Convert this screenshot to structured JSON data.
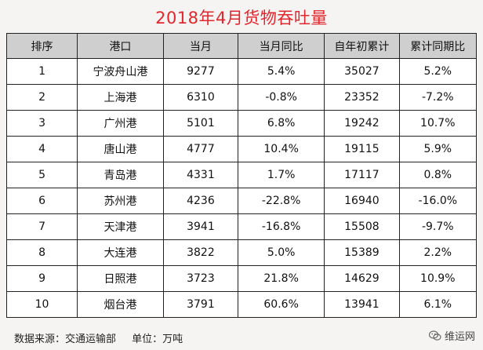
{
  "title": "2018年4月货物吞吐量",
  "table": {
    "headers": [
      "排序",
      "港口",
      "当月",
      "当月同比",
      "自年初累计",
      "累计同期比"
    ],
    "rows": [
      [
        "1",
        "宁波舟山港",
        "9277",
        "5.4%",
        "35027",
        "5.2%"
      ],
      [
        "2",
        "上海港",
        "6310",
        "-0.8%",
        "23352",
        "-7.2%"
      ],
      [
        "3",
        "广州港",
        "5101",
        "6.8%",
        "19242",
        "10.7%"
      ],
      [
        "4",
        "唐山港",
        "4777",
        "10.4%",
        "19115",
        "5.9%"
      ],
      [
        "5",
        "青岛港",
        "4331",
        "1.7%",
        "17117",
        "0.8%"
      ],
      [
        "6",
        "苏州港",
        "4236",
        "-22.8%",
        "16940",
        "-16.0%"
      ],
      [
        "7",
        "天津港",
        "3941",
        "-16.8%",
        "15508",
        "-9.7%"
      ],
      [
        "8",
        "大连港",
        "3822",
        "5.0%",
        "15389",
        "2.2%"
      ],
      [
        "9",
        "日照港",
        "3723",
        "21.8%",
        "14629",
        "10.9%"
      ],
      [
        "10",
        "烟台港",
        "3791",
        "60.6%",
        "13941",
        "6.1%"
      ]
    ]
  },
  "footer": {
    "source": "数据来源：交通运输部",
    "unit": "单位：万吨"
  },
  "watermark": {
    "text": "维运网",
    "icon": "wechat-icon"
  },
  "colors": {
    "title": "#e0272e",
    "header_bg": "#cfcfcf"
  }
}
